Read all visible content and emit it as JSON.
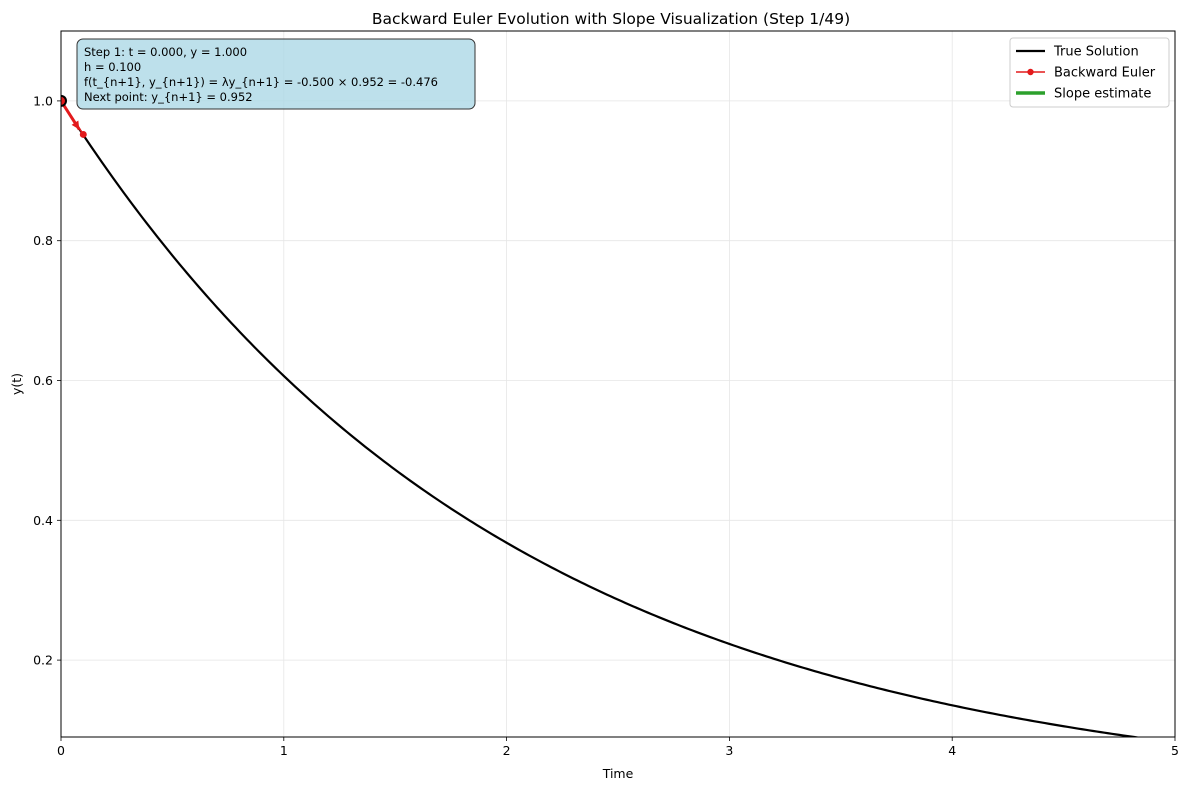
{
  "chart_data": {
    "type": "line",
    "title": "Backward Euler Evolution with Slope Visualization (Step 1/49)",
    "xlabel": "Time",
    "ylabel": "y(t)",
    "xlim": [
      0,
      5
    ],
    "ylim": [
      0.09,
      1.1
    ],
    "x_ticks": [
      0,
      1,
      2,
      3,
      4,
      5
    ],
    "x_tick_labels": [
      "0",
      "1",
      "2",
      "3",
      "4",
      "5"
    ],
    "y_ticks": [
      0.2,
      0.4,
      0.6,
      0.8,
      1.0
    ],
    "y_tick_labels": [
      "0.2",
      "0.4",
      "0.6",
      "0.8",
      "1.0"
    ],
    "grid": true,
    "legend_position": "top-right",
    "series": [
      {
        "name": "True Solution",
        "color": "#000000",
        "function": "exp(-0.5 t)",
        "x": [
          0,
          0.25,
          0.5,
          0.75,
          1,
          1.25,
          1.5,
          1.75,
          2,
          2.25,
          2.5,
          2.75,
          3,
          3.25,
          3.5,
          3.75,
          4,
          4.25,
          4.5,
          4.75,
          5
        ],
        "values": [
          1.0,
          0.8825,
          0.7788,
          0.6873,
          0.6065,
          0.5353,
          0.4724,
          0.4169,
          0.3679,
          0.3247,
          0.2865,
          0.2528,
          0.2231,
          0.1969,
          0.1738,
          0.1534,
          0.1353,
          0.1194,
          0.1054,
          0.093,
          0.0821
        ]
      },
      {
        "name": "Backward Euler",
        "color": "#e31a1c",
        "x": [
          0,
          0.1
        ],
        "values": [
          1.0,
          0.952
        ]
      },
      {
        "name": "Slope estimate",
        "color": "#2ca02c",
        "x": [],
        "values": []
      }
    ],
    "current_point": {
      "x": 0,
      "y": 1.0
    },
    "slope_arrow": {
      "x": [
        0,
        0.1
      ],
      "values": [
        1.0,
        0.952
      ],
      "color": "#e31a1c"
    },
    "annotation": {
      "lines": [
        "Step 1: t = 0.000, y = 1.000",
        "h = 0.100",
        "f(t_{n+1}, y_{n+1}) = λy_{n+1} = -0.500 × 0.952 = -0.476",
        "Next point: y_{n+1} = 0.952"
      ],
      "background": "#add8e6"
    }
  }
}
